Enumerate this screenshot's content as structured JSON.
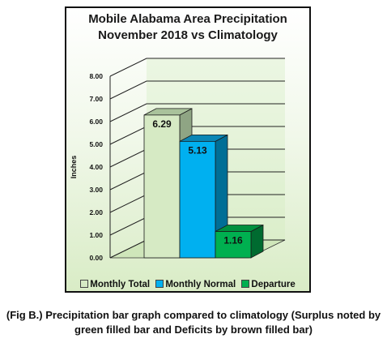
{
  "chart_data": {
    "type": "bar",
    "title": [
      "Mobile Alabama Area Precipitation",
      "November 2018 vs Climatology"
    ],
    "ylabel": "Inches",
    "ylim": [
      0,
      8
    ],
    "yticks": [
      "0.00",
      "1.00",
      "2.00",
      "3.00",
      "4.00",
      "5.00",
      "6.00",
      "7.00",
      "8.00"
    ],
    "grid": true,
    "legend_placement": "bottom",
    "series": [
      {
        "name": "Monthly Total",
        "value": 6.29,
        "label": "6.29",
        "color": "#d6eac4",
        "side_color": "#8fa584",
        "top_color": "#a9c29b"
      },
      {
        "name": "Monthly Normal",
        "value": 5.13,
        "label": "5.13",
        "color": "#00b0f0",
        "side_color": "#006e96",
        "top_color": "#0a86b5"
      },
      {
        "name": "Departure",
        "value": 1.16,
        "label": "1.16",
        "color": "#00b050",
        "side_color": "#006b30",
        "top_color": "#00903f"
      }
    ]
  },
  "caption": {
    "line1": "(Fig B.) Precipitation bar graph compared to climatology (Surplus noted by",
    "line2": "green filled bar and Deficits by brown filled bar)"
  }
}
